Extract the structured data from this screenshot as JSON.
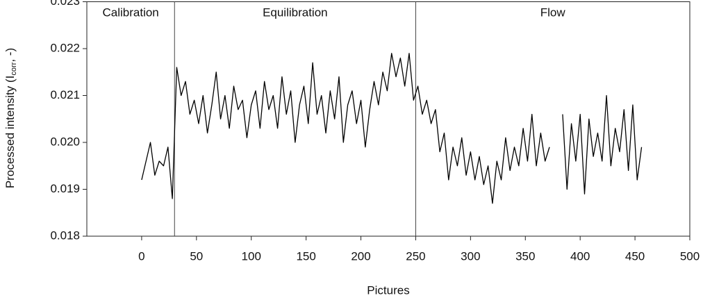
{
  "chart_data": {
    "type": "line",
    "x_label": "Pictures",
    "y_label": {
      "prefix": "Processed intensity (I",
      "subscript": "corr",
      "suffix": ", -)"
    },
    "annotations": [
      "Calibration",
      "Equilibration",
      "Flow"
    ],
    "dividers": [
      30,
      250
    ],
    "color": "#000000",
    "xlim": [
      -50,
      500
    ],
    "xticks": [
      0,
      50,
      100,
      150,
      200,
      250,
      300,
      350,
      400,
      450,
      500
    ],
    "ylim": [
      0.018,
      0.023
    ],
    "yticks": [
      0.018,
      0.019,
      {
        "value": 0.02,
        "label": "0.020"
      },
      0.021,
      0.022,
      0.023
    ],
    "x": [
      0,
      4,
      8,
      12,
      16,
      20,
      24,
      28,
      32,
      36,
      40,
      44,
      48,
      52,
      56,
      60,
      64,
      68,
      72,
      76,
      80,
      84,
      88,
      92,
      96,
      100,
      104,
      108,
      112,
      116,
      120,
      124,
      128,
      132,
      136,
      140,
      144,
      148,
      152,
      156,
      160,
      164,
      168,
      172,
      176,
      180,
      184,
      188,
      192,
      196,
      200,
      204,
      208,
      212,
      216,
      220,
      224,
      228,
      232,
      236,
      240,
      244,
      248,
      252,
      256,
      260,
      264,
      268,
      272,
      276,
      280,
      284,
      288,
      292,
      296,
      300,
      304,
      308,
      312,
      316,
      320,
      324,
      328,
      332,
      336,
      340,
      344,
      348,
      352,
      356,
      360,
      364,
      368,
      372,
      376,
      380,
      384,
      388,
      392,
      396,
      400,
      404,
      408,
      412,
      416,
      420,
      424,
      428,
      432,
      436,
      440,
      444,
      448,
      452,
      456
    ],
    "values": [
      0.0192,
      0.0196,
      0.02,
      0.0193,
      0.0196,
      0.0195,
      0.0199,
      0.0188,
      0.0216,
      0.021,
      0.0213,
      0.0206,
      0.0209,
      0.0204,
      0.021,
      0.0202,
      0.0208,
      0.0215,
      0.0205,
      0.021,
      0.0203,
      0.0212,
      0.0207,
      0.0209,
      0.0201,
      0.0208,
      0.0211,
      0.0203,
      0.0213,
      0.0207,
      0.021,
      0.0203,
      0.0214,
      0.0206,
      0.0211,
      0.02,
      0.0208,
      0.0212,
      0.0204,
      0.0217,
      0.0206,
      0.021,
      0.0202,
      0.0211,
      0.0205,
      0.0214,
      0.02,
      0.0208,
      0.0211,
      0.0204,
      0.0209,
      0.0199,
      0.0207,
      0.0213,
      0.0208,
      0.0215,
      0.0211,
      0.0219,
      0.0214,
      0.0218,
      0.0212,
      0.0219,
      0.0209,
      0.0212,
      0.0206,
      0.0209,
      0.0204,
      0.0207,
      0.0198,
      0.0202,
      0.0192,
      0.0199,
      0.0195,
      0.0201,
      0.0193,
      0.0198,
      0.0192,
      0.0197,
      0.0191,
      0.0195,
      0.0187,
      0.0196,
      0.0192,
      0.0201,
      0.0194,
      0.0199,
      0.0195,
      0.0203,
      0.0196,
      0.0206,
      0.0195,
      0.0202,
      0.0196,
      0.0199,
      null,
      null,
      0.0206,
      0.019,
      0.0204,
      0.0196,
      0.0206,
      0.0189,
      0.0205,
      0.0197,
      0.0202,
      0.0196,
      0.021,
      0.0195,
      0.0203,
      0.0198,
      0.0207,
      0.0194,
      0.0208,
      0.0192,
      0.0199
    ]
  }
}
